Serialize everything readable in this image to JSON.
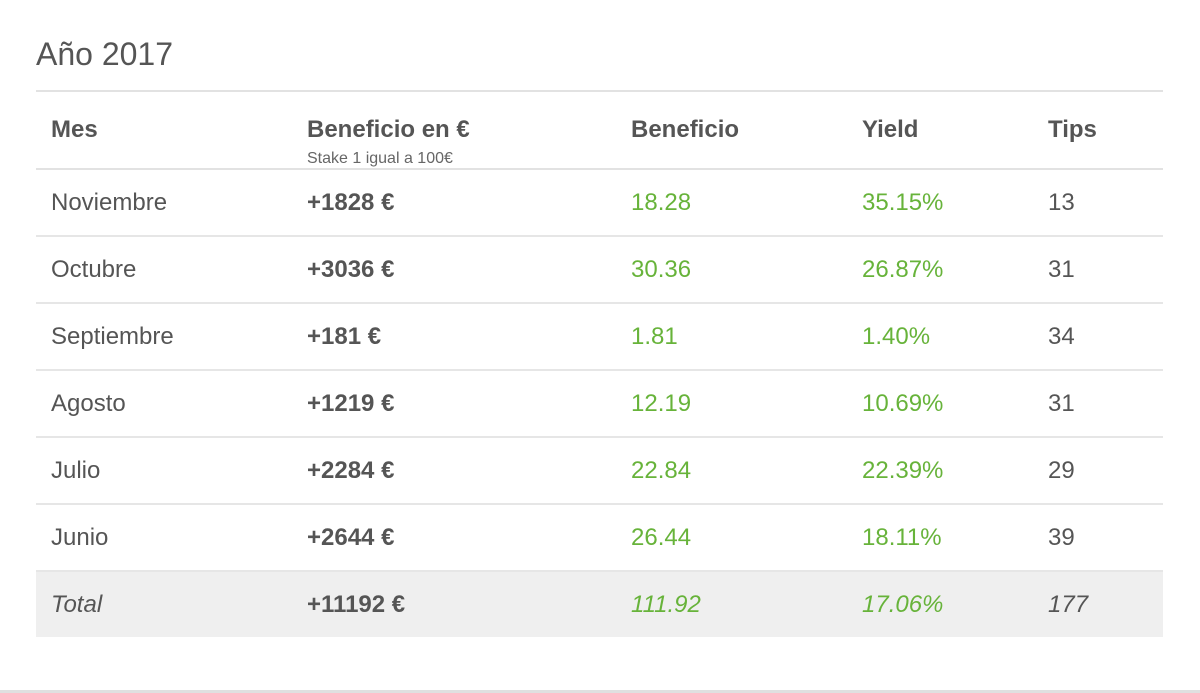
{
  "section": {
    "title": "Año 2017"
  },
  "table": {
    "headers": {
      "month": "Mes",
      "profit_eur": "Beneficio en €",
      "profit_eur_sub": "Stake 1 igual a 100€",
      "profit": "Beneficio",
      "yield": "Yield",
      "tips": "Tips"
    },
    "rows": [
      {
        "month": "Noviembre",
        "profit_eur": "+1828 €",
        "profit": "18.28",
        "yield": "35.15%",
        "tips": "13"
      },
      {
        "month": "Octubre",
        "profit_eur": "+3036 €",
        "profit": "30.36",
        "yield": "26.87%",
        "tips": "31"
      },
      {
        "month": "Septiembre",
        "profit_eur": "+181 €",
        "profit": "1.81",
        "yield": "1.40%",
        "tips": "34"
      },
      {
        "month": "Agosto",
        "profit_eur": "+1219 €",
        "profit": "12.19",
        "yield": "10.69%",
        "tips": "31"
      },
      {
        "month": "Julio",
        "profit_eur": "+2284 €",
        "profit": "22.84",
        "yield": "22.39%",
        "tips": "29"
      },
      {
        "month": "Junio",
        "profit_eur": "+2644 €",
        "profit": "26.44",
        "yield": "18.11%",
        "tips": "39"
      }
    ],
    "total": {
      "label": "Total",
      "profit_eur": "+11192 €",
      "profit": "111.92",
      "yield": "17.06%",
      "tips": "177"
    }
  },
  "colors": {
    "positive": "#67b33a",
    "text": "#555555",
    "total_background": "#efefef"
  }
}
